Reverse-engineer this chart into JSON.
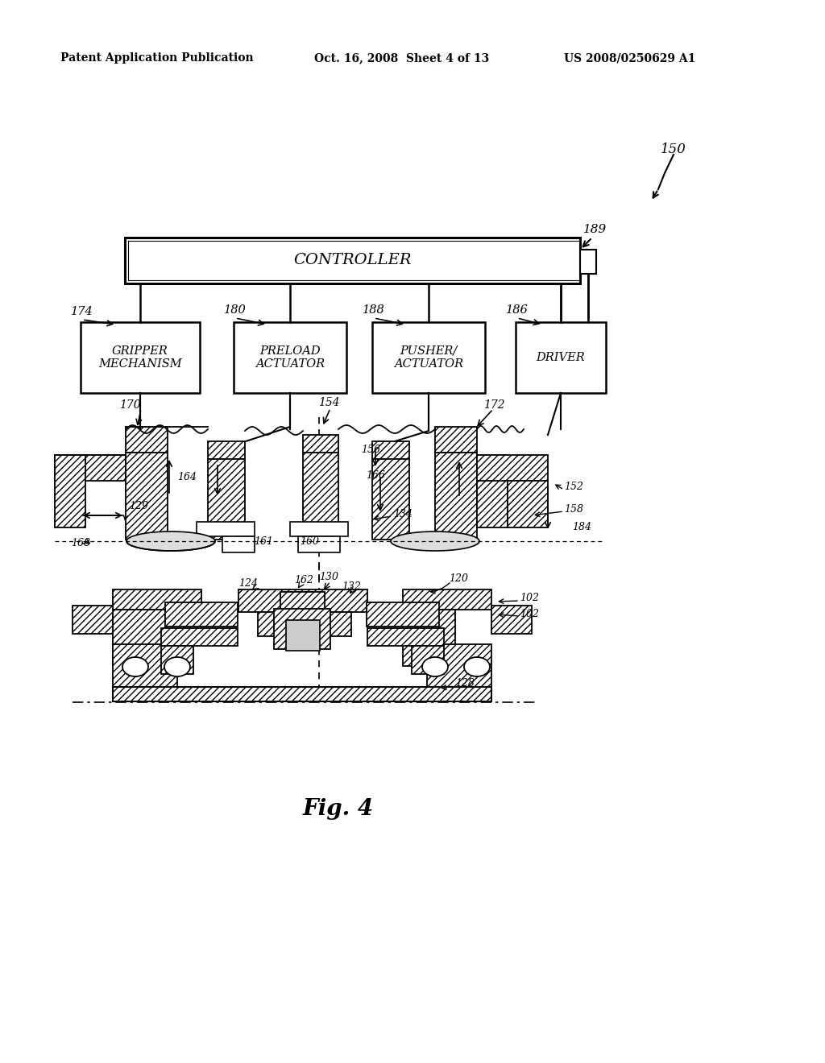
{
  "bg_color": "#ffffff",
  "header_left": "Patent Application Publication",
  "header_mid": "Oct. 16, 2008  Sheet 4 of 13",
  "header_right": "US 2008/0250629 A1",
  "controller_label": "CONTROLLER",
  "boxes": [
    {
      "label": "GRIPPER\nMECHANISM",
      "ref": "174"
    },
    {
      "label": "PRELOAD\nACTUATOR",
      "ref": "180"
    },
    {
      "label": "PUSHER/\nACTUATOR",
      "ref": "188"
    },
    {
      "label": "DRIVER",
      "ref": "186"
    }
  ],
  "fig_label": "Fig. 4",
  "ref_150": "150",
  "ref_189": "189",
  "ref_170": "170",
  "ref_154": "154",
  "ref_172": "172",
  "ref_156": "156",
  "ref_164": "164",
  "ref_166": "166",
  "ref_129": "129",
  "ref_152": "152",
  "ref_158": "158",
  "ref_168": "168",
  "ref_184": "184",
  "ref_161": "161",
  "ref_160": "160",
  "ref_134": "134",
  "ref_124": "124",
  "ref_162": "162",
  "ref_130": "130",
  "ref_132": "132",
  "ref_120": "120",
  "ref_102a": "102",
  "ref_102b": "102",
  "ref_128": "128"
}
